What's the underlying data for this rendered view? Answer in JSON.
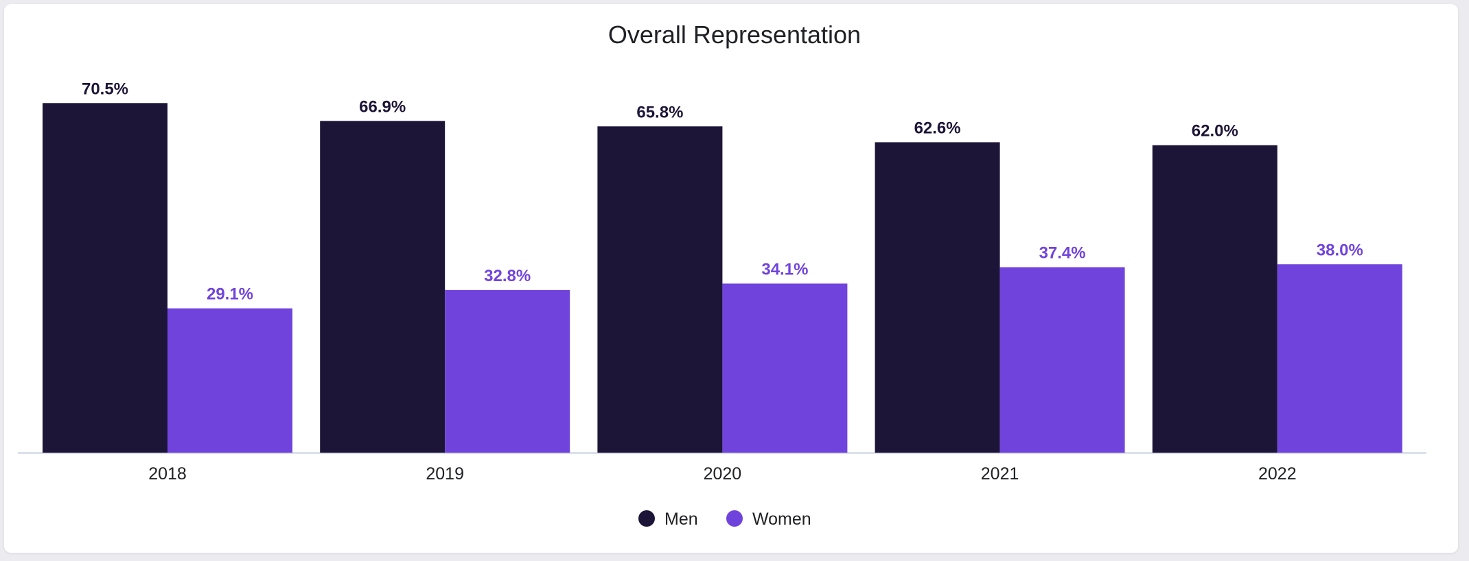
{
  "chart_data": {
    "type": "bar",
    "title": "Overall Representation",
    "xlabel": "",
    "ylabel": "",
    "ylim": [
      0,
      75
    ],
    "grid": false,
    "legend_position": "bottom-center",
    "categories": [
      "2018",
      "2019",
      "2020",
      "2021",
      "2022"
    ],
    "series": [
      {
        "name": "Men",
        "color": "#1d1537",
        "values": [
          70.5,
          66.9,
          65.8,
          62.6,
          62.0
        ],
        "labels": [
          "70.5%",
          "66.9%",
          "65.8%",
          "62.6%",
          "62.0%"
        ]
      },
      {
        "name": "Women",
        "color": "#7044dc",
        "values": [
          29.1,
          32.8,
          34.1,
          37.4,
          38.0
        ],
        "labels": [
          "29.1%",
          "32.8%",
          "34.1%",
          "37.4%",
          "38.0%"
        ]
      }
    ]
  }
}
